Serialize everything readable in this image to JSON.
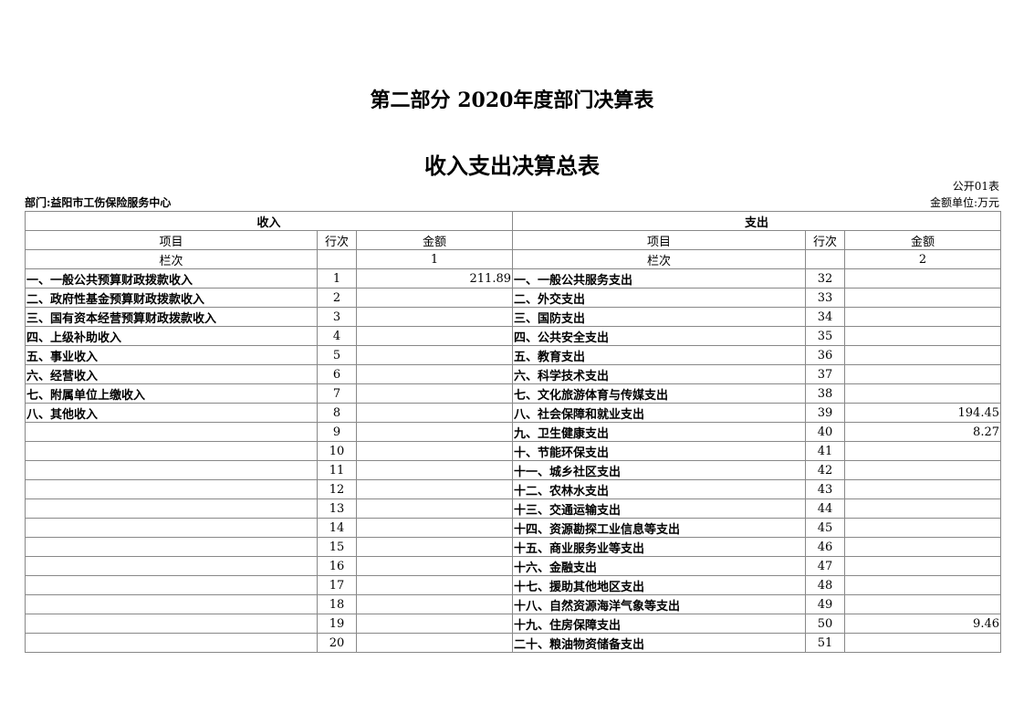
{
  "title": "第二部分 2020年度部门决算表",
  "subtitle": "收入支出决算总表",
  "table_code": "公开01表",
  "department": "部门:益阳市工伤保险服务中心",
  "unit": "金额单位:万元",
  "income_header": "收入",
  "expense_header": "支出",
  "col_item": "项目",
  "col_line": "行次",
  "col_amount": "金额",
  "col_seq": "栏次",
  "income_seq": "1",
  "expense_seq": "2",
  "rows": [
    {
      "in_item": "一、一般公共预算财政拨款收入",
      "in_line": "1",
      "in_amt": "211.89",
      "ex_item": "一、一般公共服务支出",
      "ex_line": "32",
      "ex_amt": ""
    },
    {
      "in_item": "二、政府性基金预算财政拨款收入",
      "in_line": "2",
      "in_amt": "",
      "ex_item": "二、外交支出",
      "ex_line": "33",
      "ex_amt": ""
    },
    {
      "in_item": "三、国有资本经营预算财政拨款收入",
      "in_line": "3",
      "in_amt": "",
      "ex_item": "三、国防支出",
      "ex_line": "34",
      "ex_amt": ""
    },
    {
      "in_item": "四、上级补助收入",
      "in_line": "4",
      "in_amt": "",
      "ex_item": "四、公共安全支出",
      "ex_line": "35",
      "ex_amt": ""
    },
    {
      "in_item": "五、事业收入",
      "in_line": "5",
      "in_amt": "",
      "ex_item": "五、教育支出",
      "ex_line": "36",
      "ex_amt": ""
    },
    {
      "in_item": "六、经营收入",
      "in_line": "6",
      "in_amt": "",
      "ex_item": "六、科学技术支出",
      "ex_line": "37",
      "ex_amt": ""
    },
    {
      "in_item": "七、附属单位上缴收入",
      "in_line": "7",
      "in_amt": "",
      "ex_item": "七、文化旅游体育与传媒支出",
      "ex_line": "38",
      "ex_amt": ""
    },
    {
      "in_item": "八、其他收入",
      "in_line": "8",
      "in_amt": "",
      "ex_item": "八、社会保障和就业支出",
      "ex_line": "39",
      "ex_amt": "194.45"
    },
    {
      "in_item": "",
      "in_line": "9",
      "in_amt": "",
      "ex_item": "九、卫生健康支出",
      "ex_line": "40",
      "ex_amt": "8.27"
    },
    {
      "in_item": "",
      "in_line": "10",
      "in_amt": "",
      "ex_item": "十、节能环保支出",
      "ex_line": "41",
      "ex_amt": ""
    },
    {
      "in_item": "",
      "in_line": "11",
      "in_amt": "",
      "ex_item": "十一、城乡社区支出",
      "ex_line": "42",
      "ex_amt": ""
    },
    {
      "in_item": "",
      "in_line": "12",
      "in_amt": "",
      "ex_item": "十二、农林水支出",
      "ex_line": "43",
      "ex_amt": ""
    },
    {
      "in_item": "",
      "in_line": "13",
      "in_amt": "",
      "ex_item": "十三、交通运输支出",
      "ex_line": "44",
      "ex_amt": ""
    },
    {
      "in_item": "",
      "in_line": "14",
      "in_amt": "",
      "ex_item": "十四、资源勘探工业信息等支出",
      "ex_line": "45",
      "ex_amt": ""
    },
    {
      "in_item": "",
      "in_line": "15",
      "in_amt": "",
      "ex_item": "十五、商业服务业等支出",
      "ex_line": "46",
      "ex_amt": ""
    },
    {
      "in_item": "",
      "in_line": "16",
      "in_amt": "",
      "ex_item": "十六、金融支出",
      "ex_line": "47",
      "ex_amt": ""
    },
    {
      "in_item": "",
      "in_line": "17",
      "in_amt": "",
      "ex_item": "十七、援助其他地区支出",
      "ex_line": "48",
      "ex_amt": ""
    },
    {
      "in_item": "",
      "in_line": "18",
      "in_amt": "",
      "ex_item": "十八、自然资源海洋气象等支出",
      "ex_line": "49",
      "ex_amt": ""
    },
    {
      "in_item": "",
      "in_line": "19",
      "in_amt": "",
      "ex_item": "十九、住房保障支出",
      "ex_line": "50",
      "ex_amt": "9.46"
    },
    {
      "in_item": "",
      "in_line": "20",
      "in_amt": "",
      "ex_item": "二十、粮油物资储备支出",
      "ex_line": "51",
      "ex_amt": ""
    }
  ]
}
